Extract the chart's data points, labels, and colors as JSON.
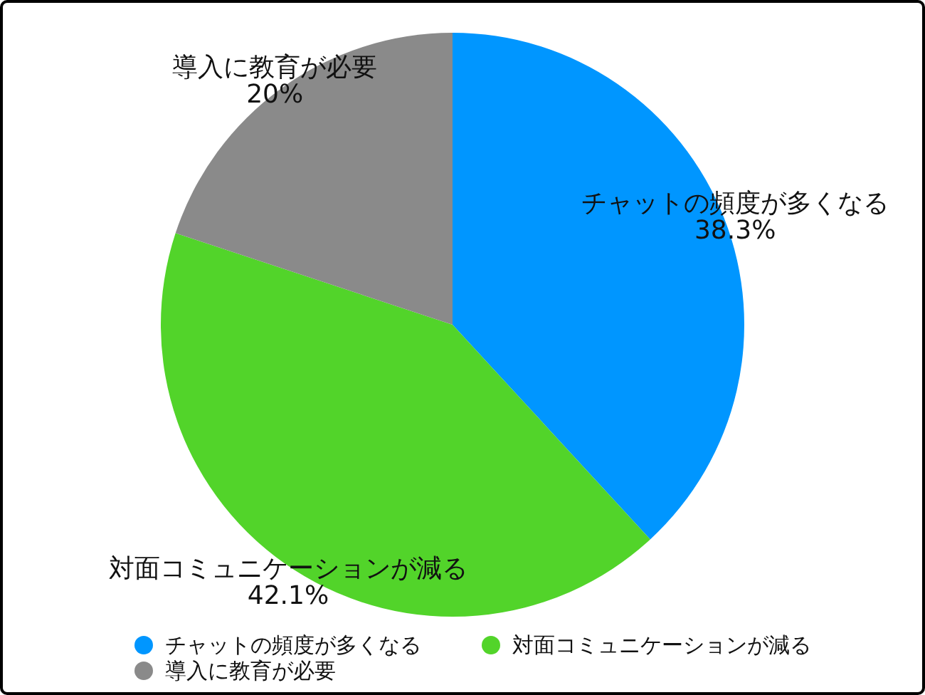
{
  "chart_data": {
    "type": "pie",
    "categories": [
      "チャットの頻度が多くなる",
      "対面コミュニケーションが減る",
      "導入に教育が必要"
    ],
    "values": [
      38.3,
      42.1,
      20
    ],
    "value_labels": [
      "38.3%",
      "42.1%",
      "20%"
    ],
    "colors": [
      "#0096ff",
      "#52d42a",
      "#8a8a8a"
    ],
    "legend": "bottom"
  }
}
